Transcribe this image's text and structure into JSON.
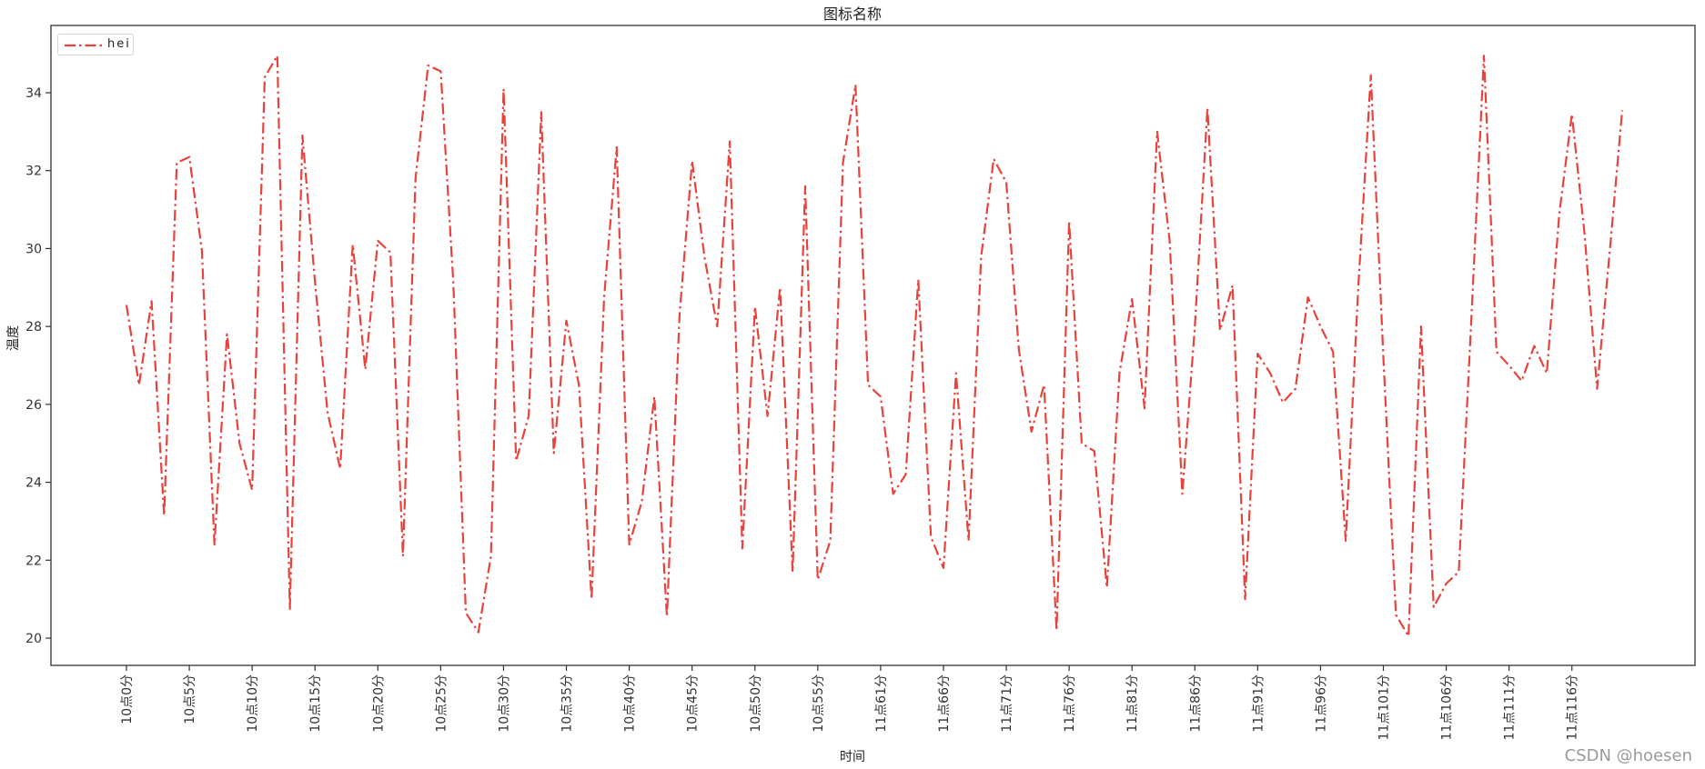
{
  "chart_data": {
    "type": "line",
    "title": "图标名称",
    "xlabel": "时间",
    "ylabel": "温度",
    "ylim": [
      19.3,
      35.6
    ],
    "yticks": [
      20,
      22,
      24,
      26,
      28,
      30,
      32,
      34
    ],
    "grid": false,
    "legend_position": "upper left",
    "xtick_indices": [
      0,
      5,
      10,
      15,
      20,
      25,
      30,
      35,
      40,
      45,
      50,
      55,
      60,
      65,
      70,
      75,
      80,
      85,
      90,
      95,
      100,
      105,
      110,
      115
    ],
    "xtick_labels": [
      "10点0分",
      "10点5分",
      "10点10分",
      "10点15分",
      "10点20分",
      "10点25分",
      "10点30分",
      "10点35分",
      "10点40分",
      "10点45分",
      "10点50分",
      "10点55分",
      "11点61分",
      "11点66分",
      "11点71分",
      "11点76分",
      "11点81分",
      "11点86分",
      "11点91分",
      "11点96分",
      "11点101分",
      "11点106分",
      "11点111分",
      "11点116分"
    ],
    "series": [
      {
        "name": "hei",
        "color": "#e8423c",
        "linestyle": "dashdot",
        "values": [
          28.55,
          26.5,
          28.65,
          23.15,
          32.2,
          32.35,
          29.95,
          22.4,
          27.8,
          25.0,
          23.8,
          34.4,
          34.95,
          20.75,
          32.9,
          29.15,
          25.8,
          24.35,
          30.1,
          26.9,
          30.2,
          29.9,
          22.1,
          31.8,
          34.7,
          34.55,
          29.15,
          20.65,
          20.15,
          22.1,
          34.1,
          24.55,
          25.7,
          33.5,
          24.75,
          28.15,
          26.5,
          21.0,
          28.75,
          32.6,
          22.4,
          23.5,
          26.2,
          20.55,
          28.3,
          32.25,
          29.75,
          28.0,
          32.75,
          22.3,
          28.5,
          25.7,
          29.0,
          21.7,
          31.6,
          21.5,
          22.5,
          32.2,
          34.2,
          26.5,
          26.2,
          23.7,
          24.2,
          29.2,
          22.6,
          21.8,
          26.8,
          22.5,
          29.8,
          32.3,
          31.7,
          27.4,
          25.3,
          26.5,
          20.2,
          30.7,
          25.0,
          24.8,
          21.3,
          26.8,
          28.7,
          25.9,
          33.0,
          30.2,
          23.7,
          28.0,
          33.6,
          27.9,
          29.05,
          21.0,
          27.3,
          26.8,
          26.05,
          26.4,
          28.75,
          28.0,
          27.35,
          22.5,
          29.0,
          34.45,
          27.2,
          20.6,
          20.05,
          28.0,
          20.8,
          21.4,
          21.7,
          28.2,
          34.95,
          27.35,
          27.0,
          26.6,
          27.5,
          26.8,
          30.9,
          33.45,
          30.4,
          26.4,
          29.9,
          33.55
        ]
      }
    ]
  },
  "ui": {
    "title": "图标名称",
    "xlabel": "时间",
    "ylabel": "温度",
    "legend_label": "hei",
    "watermark": "CSDN @hoesen"
  },
  "layout_colors": {
    "line": "#e8423c",
    "axis": "#333333"
  }
}
